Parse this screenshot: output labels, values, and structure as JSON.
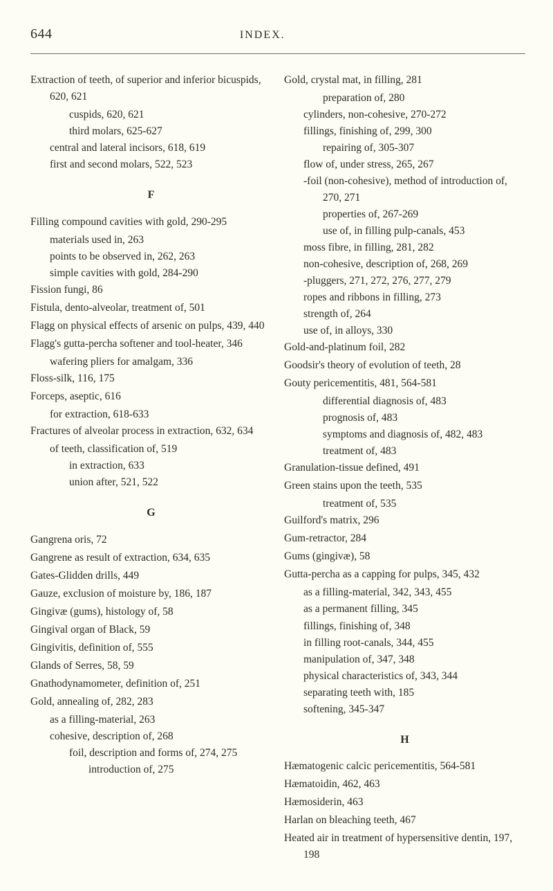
{
  "page_number": "644",
  "page_title": "INDEX.",
  "left_col": [
    {
      "cls": "entry",
      "t": "Extraction of teeth, of superior and inferior bicuspids, 620, 621"
    },
    {
      "cls": "sub2",
      "t": "cuspids, 620, 621"
    },
    {
      "cls": "sub2",
      "t": "third molars, 625-627"
    },
    {
      "cls": "sub1",
      "t": "central and lateral incisors, 618, 619"
    },
    {
      "cls": "sub1",
      "t": "first and second molars, 522, 523"
    },
    {
      "cls": "section-letter",
      "t": "F"
    },
    {
      "cls": "entry",
      "t": "Filling compound cavities with gold, 290-295"
    },
    {
      "cls": "sub1",
      "t": "materials used in, 263"
    },
    {
      "cls": "sub1",
      "t": "points to be observed in, 262, 263"
    },
    {
      "cls": "sub1",
      "t": "simple cavities with gold, 284-290"
    },
    {
      "cls": "entry",
      "t": "Fission fungi, 86"
    },
    {
      "cls": "entry",
      "t": "Fistula, dento-alveolar, treatment of, 501"
    },
    {
      "cls": "entry",
      "t": "Flagg on physical effects of arsenic on pulps, 439, 440"
    },
    {
      "cls": "entry",
      "t": "Flagg's gutta-percha softener and tool-heater, 346"
    },
    {
      "cls": "sub1",
      "t": "wafering pliers for amalgam, 336"
    },
    {
      "cls": "entry",
      "t": "Floss-silk, 116, 175"
    },
    {
      "cls": "entry",
      "t": "Forceps, aseptic, 616"
    },
    {
      "cls": "sub1",
      "t": "for extraction, 618-633"
    },
    {
      "cls": "entry",
      "t": "Fractures of alveolar process in extraction, 632, 634"
    },
    {
      "cls": "sub1",
      "t": "of teeth, classification of, 519"
    },
    {
      "cls": "sub2",
      "t": "in extraction, 633"
    },
    {
      "cls": "sub2",
      "t": "union after, 521, 522"
    },
    {
      "cls": "section-letter",
      "t": "G"
    },
    {
      "cls": "entry",
      "t": "Gangrena oris, 72"
    },
    {
      "cls": "entry",
      "t": "Gangrene as result of extraction, 634, 635"
    },
    {
      "cls": "entry",
      "t": "Gates-Glidden drills, 449"
    },
    {
      "cls": "entry",
      "t": "Gauze, exclusion of moisture by, 186, 187"
    },
    {
      "cls": "entry",
      "t": "Gingivæ (gums), histology of, 58"
    },
    {
      "cls": "entry",
      "t": "Gingival organ of Black, 59"
    },
    {
      "cls": "entry",
      "t": "Gingivitis, definition of, 555"
    },
    {
      "cls": "entry",
      "t": "Glands of Serres, 58, 59"
    },
    {
      "cls": "entry",
      "t": "Gnathodynamometer, definition of, 251"
    },
    {
      "cls": "entry",
      "t": "Gold, annealing of, 282, 283"
    },
    {
      "cls": "sub1",
      "t": "as a filling-material, 263"
    },
    {
      "cls": "sub1",
      "t": "cohesive, description of, 268"
    },
    {
      "cls": "sub2",
      "t": "foil, description and forms of, 274, 275"
    },
    {
      "cls": "sub3",
      "t": "introduction of, 275"
    }
  ],
  "right_col": [
    {
      "cls": "entry",
      "t": "Gold, crystal mat, in filling, 281"
    },
    {
      "cls": "sub2",
      "t": "preparation of, 280"
    },
    {
      "cls": "sub1",
      "t": "cylinders, non-cohesive, 270-272"
    },
    {
      "cls": "sub1",
      "t": "fillings, finishing of, 299, 300"
    },
    {
      "cls": "sub2",
      "t": "repairing of, 305-307"
    },
    {
      "cls": "sub1",
      "t": "flow of, under stress, 265, 267"
    },
    {
      "cls": "sub1",
      "t": "-foil (non-cohesive), method of introduction of, 270, 271"
    },
    {
      "cls": "sub2",
      "t": "properties of, 267-269"
    },
    {
      "cls": "sub2",
      "t": "use of, in filling pulp-canals, 453"
    },
    {
      "cls": "sub1",
      "t": "moss fibre, in filling, 281, 282"
    },
    {
      "cls": "sub1",
      "t": "non-cohesive, description of, 268, 269"
    },
    {
      "cls": "sub1",
      "t": "-pluggers, 271, 272, 276, 277, 279"
    },
    {
      "cls": "sub1",
      "t": "ropes and ribbons in filling, 273"
    },
    {
      "cls": "sub1",
      "t": "strength of, 264"
    },
    {
      "cls": "sub1",
      "t": "use of, in alloys, 330"
    },
    {
      "cls": "entry",
      "t": "Gold-and-platinum foil, 282"
    },
    {
      "cls": "entry",
      "t": "Goodsir's theory of evolution of teeth, 28"
    },
    {
      "cls": "entry",
      "t": "Gouty pericementitis, 481, 564-581"
    },
    {
      "cls": "sub2",
      "t": "differential diagnosis of, 483"
    },
    {
      "cls": "sub2",
      "t": "prognosis of, 483"
    },
    {
      "cls": "sub2",
      "t": "symptoms and diagnosis of, 482, 483"
    },
    {
      "cls": "sub2",
      "t": "treatment of, 483"
    },
    {
      "cls": "entry",
      "t": "Granulation-tissue defined, 491"
    },
    {
      "cls": "entry",
      "t": "Green stains upon the teeth, 535"
    },
    {
      "cls": "sub2",
      "t": "treatment of, 535"
    },
    {
      "cls": "entry",
      "t": "Guilford's matrix, 296"
    },
    {
      "cls": "entry",
      "t": "Gum-retractor, 284"
    },
    {
      "cls": "entry",
      "t": "Gums (gingivæ), 58"
    },
    {
      "cls": "entry",
      "t": "Gutta-percha as a capping for pulps, 345, 432"
    },
    {
      "cls": "sub1",
      "t": "as a filling-material, 342, 343, 455"
    },
    {
      "cls": "sub1",
      "t": "as a permanent filling, 345"
    },
    {
      "cls": "sub1",
      "t": "fillings, finishing of, 348"
    },
    {
      "cls": "sub1",
      "t": "in filling root-canals, 344, 455"
    },
    {
      "cls": "sub1",
      "t": "manipulation of, 347, 348"
    },
    {
      "cls": "sub1",
      "t": "physical characteristics of, 343, 344"
    },
    {
      "cls": "sub1",
      "t": "separating teeth with, 185"
    },
    {
      "cls": "sub1",
      "t": "softening, 345-347"
    },
    {
      "cls": "section-letter",
      "t": "H"
    },
    {
      "cls": "entry",
      "t": "Hæmatogenic calcic pericementitis, 564-581"
    },
    {
      "cls": "entry",
      "t": "Hæmatoidin, 462, 463"
    },
    {
      "cls": "entry",
      "t": "Hæmosiderin, 463"
    },
    {
      "cls": "entry",
      "t": "Harlan on bleaching teeth, 467"
    },
    {
      "cls": "entry",
      "t": "Heated air in treatment of hypersensitive dentin, 197, 198"
    }
  ]
}
